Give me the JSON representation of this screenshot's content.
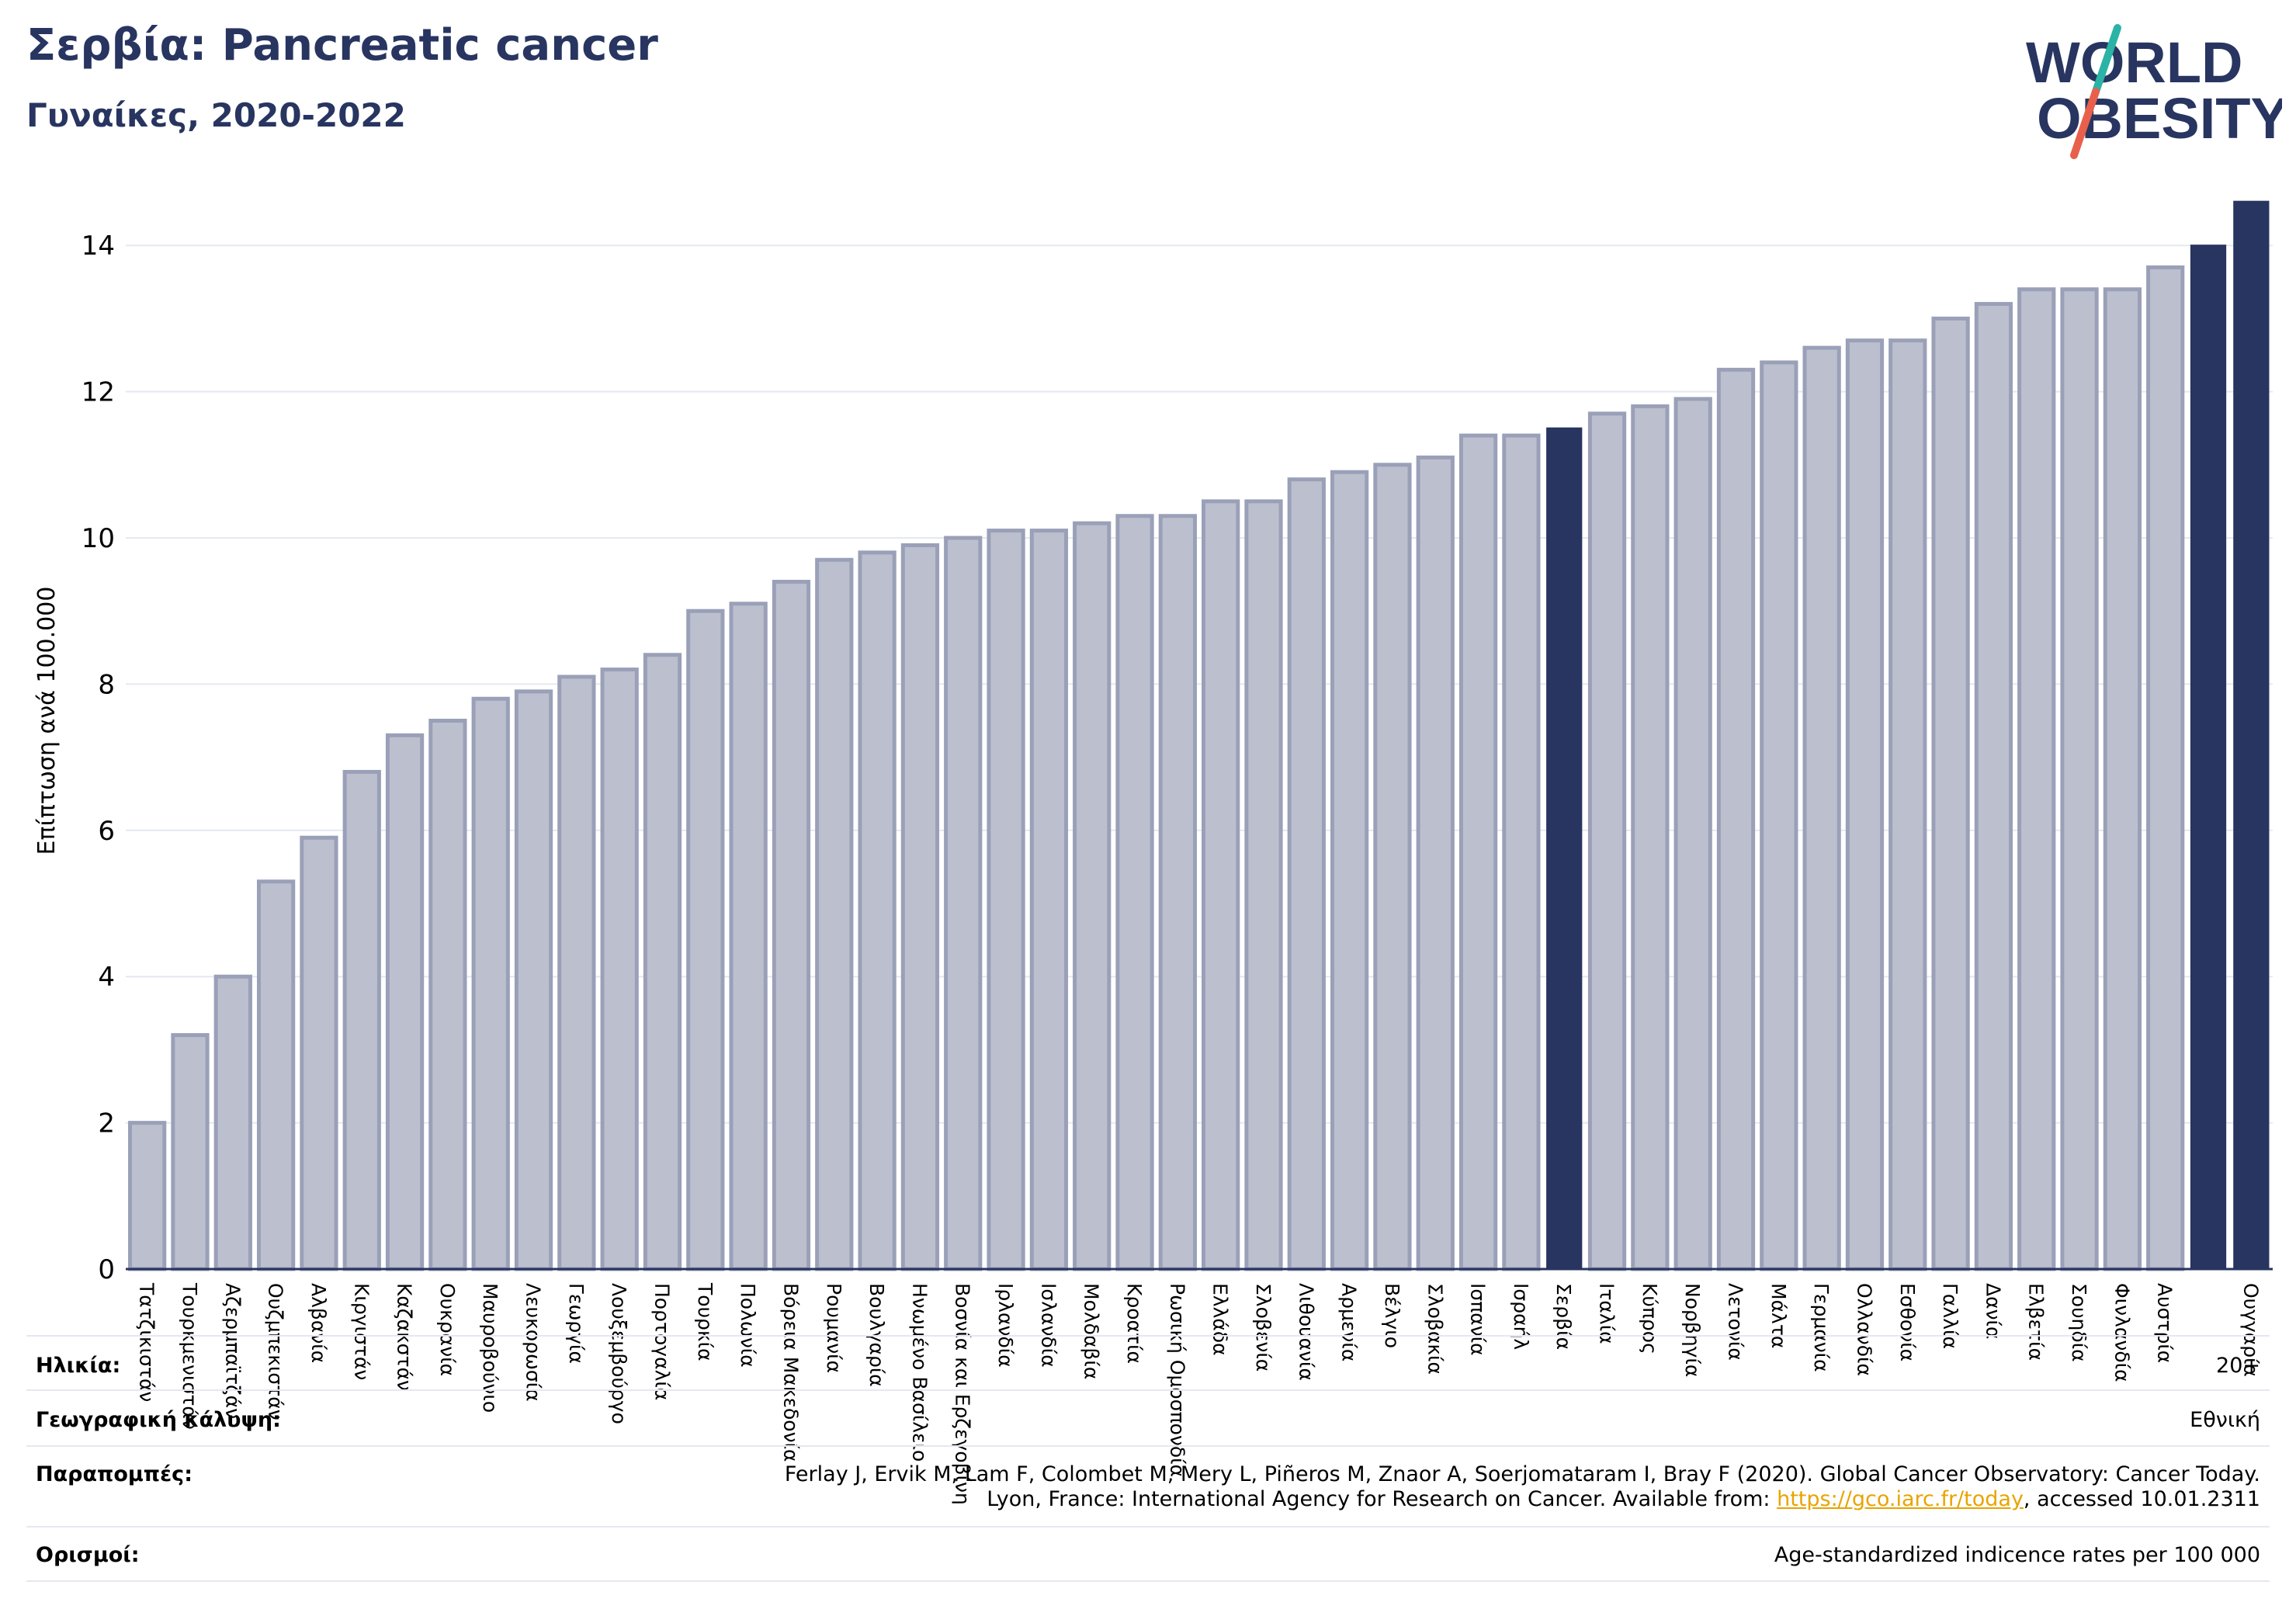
{
  "title": "Σερβία: Pancreatic cancer",
  "subtitle": "Γυναίκες, 2020-2022",
  "logo": {
    "line1": "WORLD",
    "line2": "OBESITY",
    "slash_colors": [
      "#2bb3a6",
      "#e8604c"
    ]
  },
  "colors": {
    "bar": "#bcc0ce",
    "bar_edge": "#9aa0b8",
    "highlight": "#283560",
    "grid": "#e6e8f0",
    "axis": "#283560"
  },
  "chart_data": {
    "type": "bar",
    "ylabel": "Επίπτωση ανά 100.000",
    "ylim": [
      0,
      15
    ],
    "yticks": [
      0,
      2,
      4,
      6,
      8,
      10,
      12,
      14
    ],
    "grid": true,
    "highlight": [
      "Σερβία",
      "Ουγγαρία"
    ],
    "categories": [
      "Τατζικιστάν",
      "Τουρκμενιστάν",
      "Αζερμπαϊτζάν",
      "Ουζμπεκιστάν",
      "Αλβανία",
      "Κιργιστάν",
      "Καζακστάν",
      "Ουκρανία",
      "Μαυροβούνιο",
      "Λευκορωσία",
      "Γεωργία",
      "Λουξεμβούργο",
      "Πορτογαλία",
      "Τουρκία",
      "Πολωνία",
      "Βόρεια Μακεδονία",
      "Ρουμανία",
      "Βουλγαρία",
      "Ηνωμένο Βασίλειο",
      "Βοσνία και Ερζεγοβίνη",
      "Ιρλανδία",
      "Ισλανδία",
      "Μολδαβία",
      "Κροατία",
      "Ρωσική Ομοσπονδία",
      "Ελλάδα",
      "Σλοβενία",
      "Λιθουανία",
      "Αρμενία",
      "Βέλγιο",
      "Σλοβακία",
      "Ισπανία",
      "Ισραήλ",
      "Σερβία",
      "Ιταλία",
      "Κύπρος",
      "Νορβηγία",
      "Λετονία",
      "Μάλτα",
      "Γερμανία",
      "Ολλανδία",
      "Εσθονία",
      "Γαλλία",
      "Δανία",
      "Ελβετία",
      "Σουηδία",
      "Φινλανδία",
      "Αυστρία",
      "",
      "Ουγγαρία"
    ],
    "values": [
      2.0,
      3.2,
      4.0,
      5.3,
      5.9,
      6.8,
      7.3,
      7.5,
      7.8,
      7.9,
      8.1,
      8.2,
      8.4,
      9.0,
      9.1,
      9.4,
      9.7,
      9.8,
      9.9,
      10.0,
      10.1,
      10.1,
      10.2,
      10.3,
      10.3,
      10.5,
      10.5,
      10.8,
      10.9,
      11.0,
      11.1,
      11.4,
      11.4,
      11.5,
      11.7,
      11.8,
      11.9,
      12.3,
      12.4,
      12.6,
      12.7,
      12.7,
      13.0,
      13.2,
      13.4,
      13.4,
      13.4,
      13.7,
      14.0,
      14.6
    ]
  },
  "meta": {
    "age_label": "Ηλικία:",
    "age_value": "20+",
    "coverage_label": "Γεωγραφική κάλυψη:",
    "coverage_value": "Εθνική",
    "refs_label": "Παραπομπές:",
    "refs_line1": "Ferlay J, Ervik M, Lam F, Colombet M, Mery L, Piñeros M, Znaor A, Soerjomataram I, Bray F (2020). Global Cancer Observatory: Cancer Today.",
    "refs_line2_prefix": "Lyon, France: International Agency for Research on Cancer. Available from: ",
    "refs_link": "https://gco.iarc.fr/today",
    "refs_line2_suffix": ", accessed 10.01.2311",
    "definitions_label": "Ορισμοί:",
    "definitions_value": "Age-standardized indicence rates per 100 000"
  }
}
